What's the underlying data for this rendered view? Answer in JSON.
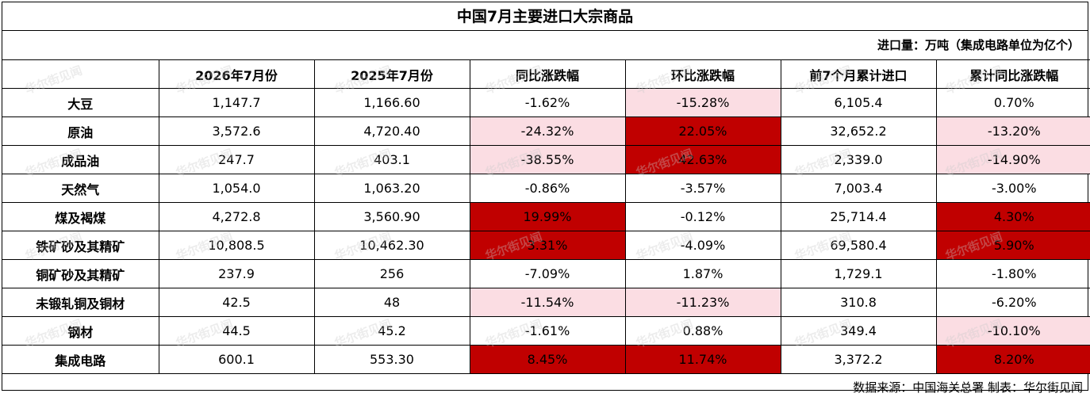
{
  "chart_data": {
    "type": "table",
    "title": "中国7月主要进口大宗商品",
    "unit_note": "进口量：万吨（集成电路单位为亿个）",
    "headers": [
      "",
      "2026年7月份",
      "2025年7月份",
      "同比涨跌幅",
      "环比涨跌幅",
      "前7个月累计进口",
      "累计同比涨跌幅"
    ],
    "rows": [
      {
        "name": "大豆",
        "cells": [
          "1,147.7",
          "1,166.60",
          "-1.62%",
          "-15.28%",
          "6,105.4",
          "0.70%"
        ],
        "shade": [
          "",
          "",
          "",
          "light",
          "",
          ""
        ]
      },
      {
        "name": "原油",
        "cells": [
          "3,572.6",
          "4,720.40",
          "-24.32%",
          "22.05%",
          "32,652.2",
          "-13.20%"
        ],
        "shade": [
          "",
          "",
          "light",
          "dark",
          "",
          "light"
        ]
      },
      {
        "name": "成品油",
        "cells": [
          "247.7",
          "403.1",
          "-38.55%",
          "42.63%",
          "2,339.0",
          "-14.90%"
        ],
        "shade": [
          "",
          "",
          "light",
          "dark",
          "",
          "light"
        ]
      },
      {
        "name": "天然气",
        "cells": [
          "1,054.0",
          "1,063.20",
          "-0.86%",
          "-3.57%",
          "7,003.4",
          "-3.00%"
        ],
        "shade": [
          "",
          "",
          "",
          "",
          "",
          ""
        ]
      },
      {
        "name": "煤及褐煤",
        "cells": [
          "4,272.8",
          "3,560.90",
          "19.99%",
          "-0.12%",
          "25,714.4",
          "4.30%"
        ],
        "shade": [
          "",
          "",
          "dark",
          "",
          "",
          "dark"
        ]
      },
      {
        "name": "铁矿砂及其精矿",
        "cells": [
          "10,808.5",
          "10,462.30",
          "3.31%",
          "-4.09%",
          "69,580.4",
          "5.90%"
        ],
        "shade": [
          "",
          "",
          "dark",
          "",
          "",
          "dark"
        ]
      },
      {
        "name": "铜矿砂及其精矿",
        "cells": [
          "237.9",
          "256",
          "-7.09%",
          "1.87%",
          "1,729.1",
          "-1.80%"
        ],
        "shade": [
          "",
          "",
          "",
          "",
          "",
          ""
        ]
      },
      {
        "name": "未锻轧铜及铜材",
        "cells": [
          "42.5",
          "48",
          "-11.54%",
          "-11.23%",
          "310.8",
          "-6.20%"
        ],
        "shade": [
          "",
          "",
          "light",
          "light",
          "",
          ""
        ]
      },
      {
        "name": "钢材",
        "cells": [
          "44.5",
          "45.2",
          "-1.61%",
          "0.88%",
          "349.4",
          "-10.10%"
        ],
        "shade": [
          "",
          "",
          "",
          "",
          "",
          "light"
        ]
      },
      {
        "name": "集成电路",
        "cells": [
          "600.1",
          "553.30",
          "8.45%",
          "11.74%",
          "3,372.2",
          "8.20%"
        ],
        "shade": [
          "",
          "",
          "dark",
          "dark",
          "",
          "dark"
        ]
      }
    ],
    "source": "数据来源：中国海关总署 制表：华尔街见闻",
    "watermark": "华尔街见闻",
    "colors": {
      "light": "#fbdde3",
      "dark": "#c00000"
    }
  }
}
